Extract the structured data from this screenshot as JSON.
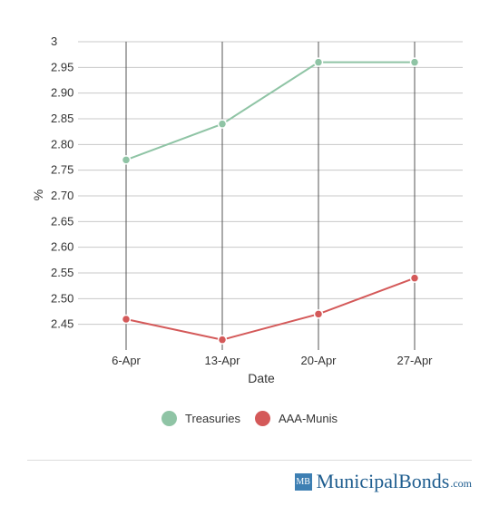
{
  "chart_data": {
    "type": "line",
    "categories": [
      "6-Apr",
      "13-Apr",
      "20-Apr",
      "27-Apr"
    ],
    "series": [
      {
        "name": "Treasuries",
        "color": "#8fc4a5",
        "values": [
          2.77,
          2.84,
          2.96,
          2.96
        ]
      },
      {
        "name": "AAA-Munis",
        "color": "#d45959",
        "values": [
          2.46,
          2.42,
          2.47,
          2.54
        ]
      }
    ],
    "title": "",
    "xlabel": "Date",
    "ylabel": "%",
    "ylim": [
      2.4,
      3.0
    ],
    "y_ticks": [
      "2.45",
      "2.50",
      "2.55",
      "2.60",
      "2.65",
      "2.70",
      "2.75",
      "2.80",
      "2.85",
      "2.90",
      "2.95",
      "3"
    ],
    "grid": true,
    "legend_position": "bottom"
  },
  "legend": {
    "items": [
      {
        "label": "Treasuries",
        "color": "#8fc4a5"
      },
      {
        "label": "AAA-Munis",
        "color": "#d45959"
      }
    ]
  },
  "brand": {
    "logo_text": "MB",
    "name": "MunicipalBonds",
    "tld": ".com"
  }
}
